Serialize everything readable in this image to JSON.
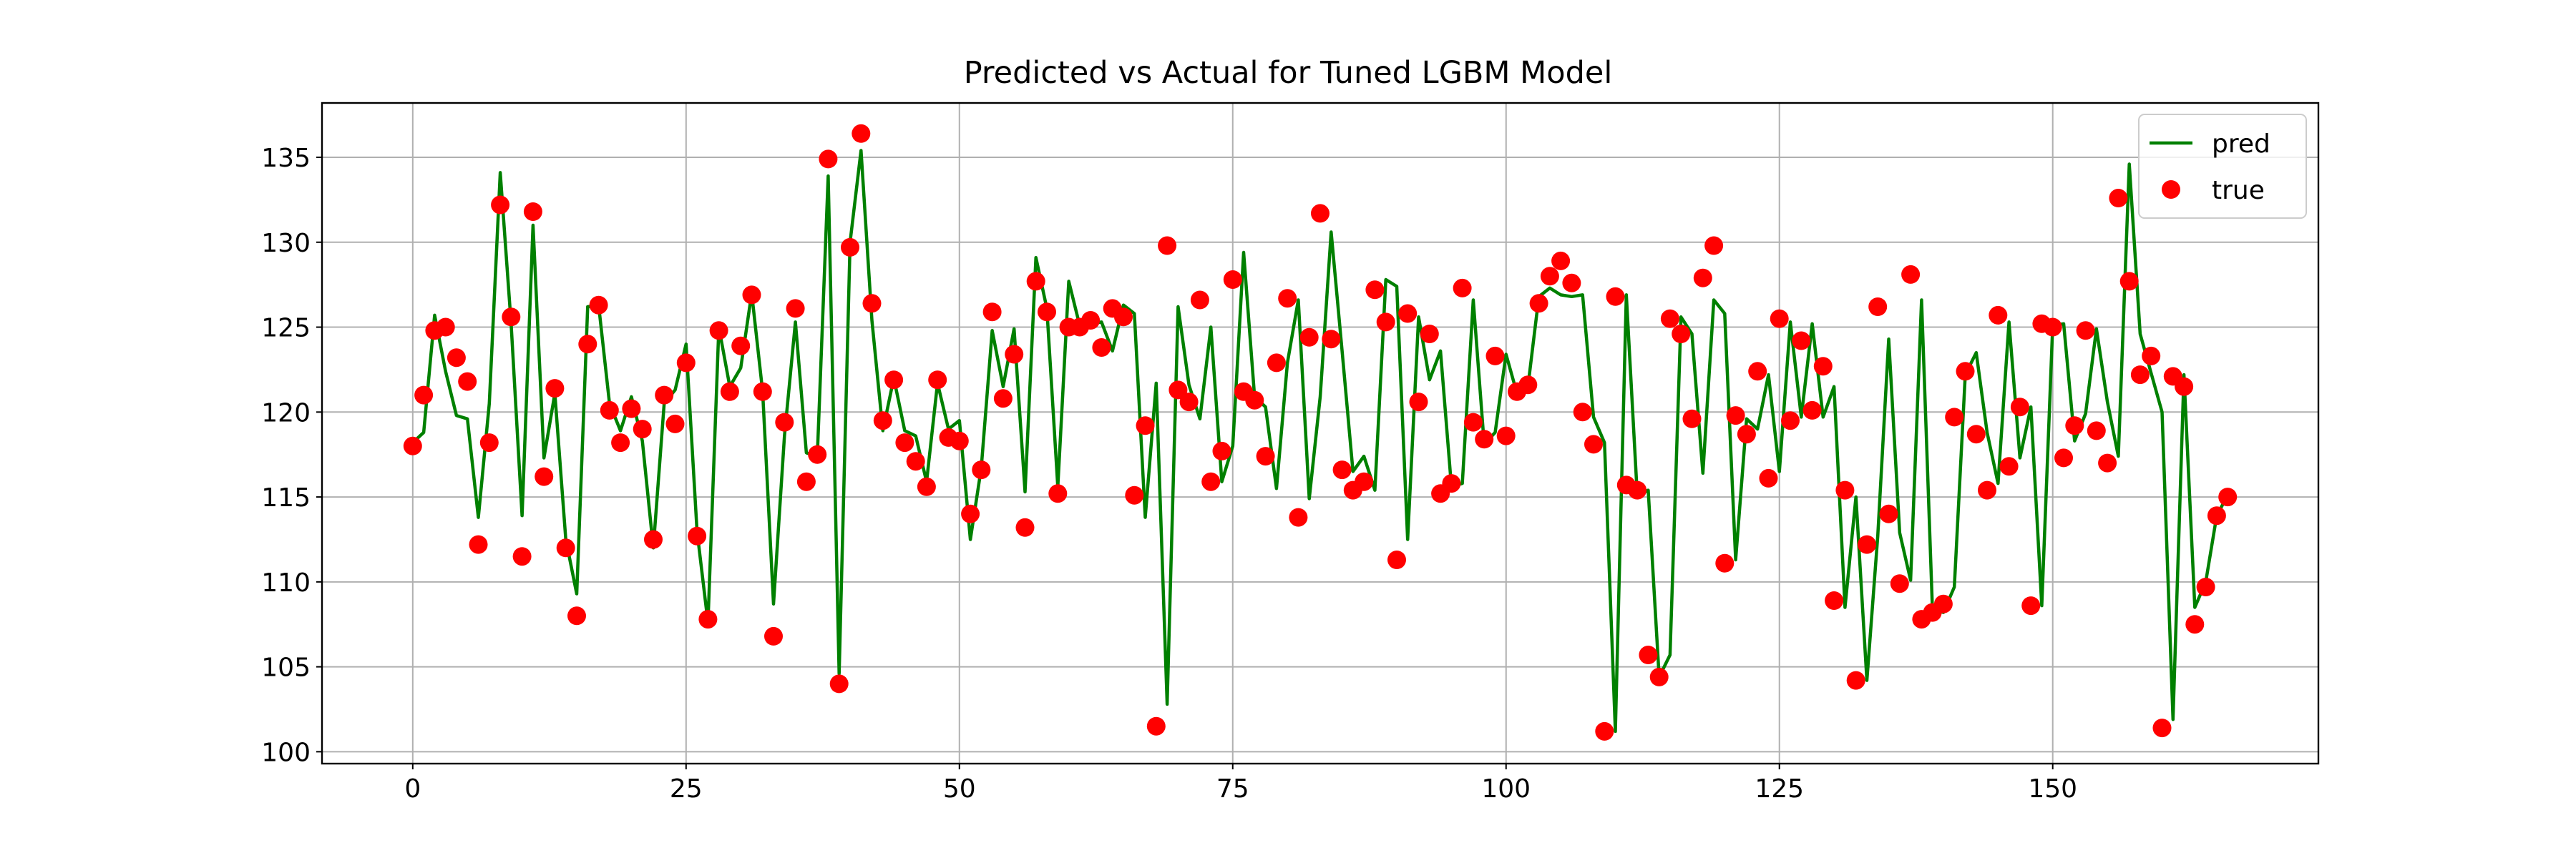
{
  "chart_data": {
    "type": "line",
    "title": "Predicted vs Actual for Tuned LGBM Model",
    "xlabel": "",
    "ylabel": "",
    "xlim": [
      -8.3,
      174.3
    ],
    "ylim": [
      99.3,
      138.2
    ],
    "xticks": [
      0,
      25,
      50,
      75,
      100,
      125,
      150
    ],
    "yticks": [
      100,
      105,
      110,
      115,
      120,
      125,
      130,
      135
    ],
    "grid": true,
    "legend_position": "top-right",
    "colors": {
      "pred": "#008000",
      "true": "#ff0000"
    },
    "series": [
      {
        "name": "pred",
        "kind": "line",
        "values": [
          118.2,
          118.8,
          125.7,
          122.4,
          119.8,
          119.6,
          113.8,
          120.5,
          134.1,
          125.2,
          113.9,
          131.0,
          117.3,
          121.1,
          112.5,
          109.3,
          126.2,
          126.3,
          120.5,
          118.9,
          120.9,
          118.3,
          112.0,
          120.5,
          121.3,
          124.0,
          113.0,
          107.6,
          125.0,
          121.5,
          122.6,
          127.0,
          121.2,
          108.7,
          118.6,
          125.3,
          117.6,
          117.4,
          133.9,
          104.6,
          130.0,
          135.4,
          125.4,
          118.9,
          122.0,
          118.9,
          118.6,
          115.9,
          121.7,
          119.0,
          119.5,
          112.5,
          116.7,
          124.8,
          121.5,
          124.9,
          115.3,
          129.1,
          126.1,
          115.6,
          127.7,
          125.1,
          125.2,
          125.3,
          123.6,
          126.3,
          125.8,
          113.8,
          121.7,
          102.8,
          126.2,
          121.6,
          119.6,
          125.0,
          115.9,
          118.0,
          129.4,
          120.9,
          120.3,
          115.5,
          122.9,
          126.6,
          114.9,
          120.9,
          130.6,
          123.6,
          116.5,
          117.4,
          115.4,
          127.8,
          127.4,
          112.5,
          125.6,
          121.9,
          123.6,
          115.6,
          115.8,
          126.6,
          118.1,
          118.8,
          123.4,
          121.1,
          121.5,
          126.8,
          127.3,
          126.9,
          126.8,
          126.9,
          119.7,
          118.2,
          101.2,
          126.9,
          115.1,
          115.4,
          104.4,
          105.7,
          125.6,
          124.6,
          116.4,
          126.6,
          125.8,
          111.3,
          119.6,
          119.0,
          122.2,
          116.5,
          125.3,
          119.7,
          125.2,
          119.7,
          121.5,
          108.5,
          115.0,
          104.2,
          112.7,
          124.3,
          112.9,
          110.1,
          126.6,
          108.4,
          108.2,
          109.7,
          122.2,
          123.5,
          118.8,
          115.8,
          125.3,
          117.3,
          120.3,
          108.6,
          125.1,
          125.2,
          118.3,
          119.9,
          124.9,
          120.6,
          117.4,
          134.6,
          124.6,
          122.3,
          120.0,
          101.9,
          122.2,
          108.5,
          110.0,
          113.9,
          115.1
        ]
      },
      {
        "name": "true",
        "kind": "scatter",
        "values": [
          118.0,
          121.0,
          124.8,
          125.0,
          123.2,
          121.8,
          112.2,
          118.2,
          132.2,
          125.6,
          111.5,
          131.8,
          116.2,
          121.4,
          112.0,
          108.0,
          124.0,
          126.3,
          120.1,
          118.2,
          120.2,
          119.0,
          112.5,
          121.0,
          119.3,
          122.9,
          112.7,
          107.8,
          124.8,
          121.2,
          123.9,
          126.9,
          121.2,
          106.8,
          119.4,
          126.1,
          115.9,
          117.5,
          134.9,
          104.0,
          129.7,
          136.4,
          126.4,
          119.5,
          121.9,
          118.2,
          117.1,
          115.6,
          121.9,
          118.5,
          118.3,
          114.0,
          116.6,
          125.9,
          120.8,
          123.4,
          113.2,
          127.7,
          125.9,
          115.2,
          125.0,
          125.0,
          125.4,
          123.8,
          126.1,
          125.6,
          115.1,
          119.2,
          101.5,
          129.8,
          121.3,
          120.6,
          126.6,
          115.9,
          117.7,
          127.8,
          121.2,
          120.7,
          117.4,
          122.9,
          126.7,
          113.8,
          124.4,
          131.7,
          124.3,
          116.6,
          115.4,
          115.9,
          127.2,
          125.3,
          111.3,
          125.8,
          120.6,
          124.6,
          115.2,
          115.8,
          127.3,
          119.4,
          118.4,
          123.3,
          118.6,
          121.2,
          121.6,
          126.4,
          128.0,
          128.9,
          127.6,
          120.0,
          118.1,
          101.2,
          126.8,
          115.7,
          115.4,
          105.7,
          104.4,
          125.5,
          124.6,
          119.6,
          127.9,
          129.8,
          111.1,
          119.8,
          118.7,
          122.4,
          116.1,
          125.5,
          119.5,
          124.2,
          120.1,
          122.7,
          108.9,
          115.4,
          104.2,
          112.2,
          126.2,
          114.0,
          109.9,
          128.1,
          107.8,
          108.2,
          108.7,
          119.7,
          122.4,
          118.7,
          115.4,
          125.7,
          116.8,
          120.3,
          108.6,
          125.2,
          125.0,
          117.3,
          119.2,
          124.8,
          118.9,
          117.0,
          132.6,
          127.7,
          122.2,
          123.3,
          101.4,
          122.1,
          121.5,
          107.5,
          109.7,
          113.9,
          115.0
        ]
      }
    ]
  }
}
